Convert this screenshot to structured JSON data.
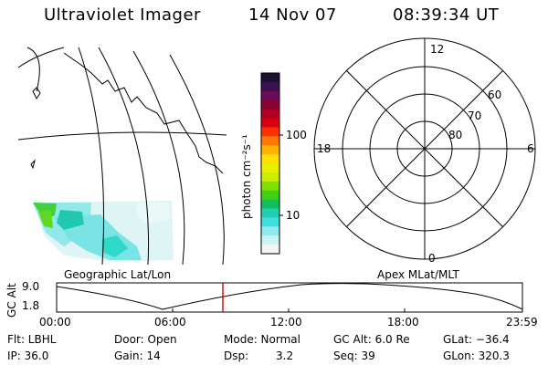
{
  "header": {
    "instrument": "Ultraviolet Imager",
    "date": "14 Nov 07",
    "time": "08:39:34 UT"
  },
  "geo_panel": {
    "caption": "Geographic Lat/Lon"
  },
  "colorbar": {
    "label": "photon cm⁻²s⁻¹",
    "ticks": [
      "100",
      "10"
    ],
    "colors": [
      "#1a1030",
      "#3a1050",
      "#6a0a5a",
      "#8a0030",
      "#b00020",
      "#d80010",
      "#ff3000",
      "#ff7a00",
      "#ffb000",
      "#ffe000",
      "#e8f000",
      "#c8f000",
      "#80e000",
      "#40d010",
      "#10c060",
      "#20d0b0",
      "#40e0e0",
      "#90ecec",
      "#c8f4f4",
      "#f4f4f4"
    ]
  },
  "polar_panel": {
    "caption": "Apex MLat/MLT",
    "mlt_labels": {
      "top": "12",
      "left": "18",
      "right": "6",
      "bottom": "0"
    },
    "lat_labels": [
      "60",
      "70",
      "80"
    ]
  },
  "altitude_plot": {
    "ylabel": "GC Alt",
    "y_ticks": [
      "9.0",
      "1.8"
    ],
    "x_ticks": [
      "00:00",
      "06:00",
      "12:00",
      "18:00",
      "23:59"
    ],
    "marker_color": "#cc0000"
  },
  "status": {
    "filter": "Flt: LBHL",
    "door": "Door: Open",
    "mode": "Mode: Normal",
    "gc_alt": "GC Alt: 6.0 Re",
    "glat": "GLat: −36.4",
    "ip": "IP: 36.0",
    "gain": "Gain: 14",
    "dsp": "Dsp:",
    "dsp_value": "3.2",
    "seq": "Seq: 39",
    "glon": "GLon: 320.3"
  }
}
